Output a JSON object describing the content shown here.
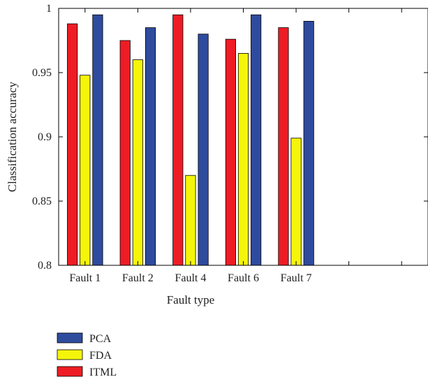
{
  "chart_data": {
    "type": "bar",
    "title": "",
    "xlabel": "Fault type",
    "ylabel": "Classification accuracy",
    "ylim": [
      0.8,
      1
    ],
    "yticks": [
      0.8,
      0.85,
      0.9,
      0.95,
      1
    ],
    "ytick_labels": [
      "0.8",
      "0.85",
      "0.9",
      "0.95",
      "1"
    ],
    "categories": [
      "Fault 1",
      "Fault 2",
      "Fault 4",
      "Fault 6",
      "Fault 7"
    ],
    "xlim": [
      0.5,
      7.5
    ],
    "grid": false,
    "legend_position": "bottom-left",
    "series": [
      {
        "name": "ITML",
        "color": "#ee1c24",
        "values": [
          0.988,
          0.975,
          0.995,
          0.976,
          0.985
        ]
      },
      {
        "name": "FDA",
        "color": "#f5f50a",
        "values": [
          0.948,
          0.96,
          0.87,
          0.965,
          0.899
        ]
      },
      {
        "name": "PCA",
        "color": "#2e4b9e",
        "values": [
          0.995,
          0.985,
          0.98,
          0.995,
          0.99
        ]
      }
    ],
    "legend_order": [
      "PCA",
      "FDA",
      "ITML"
    ]
  }
}
